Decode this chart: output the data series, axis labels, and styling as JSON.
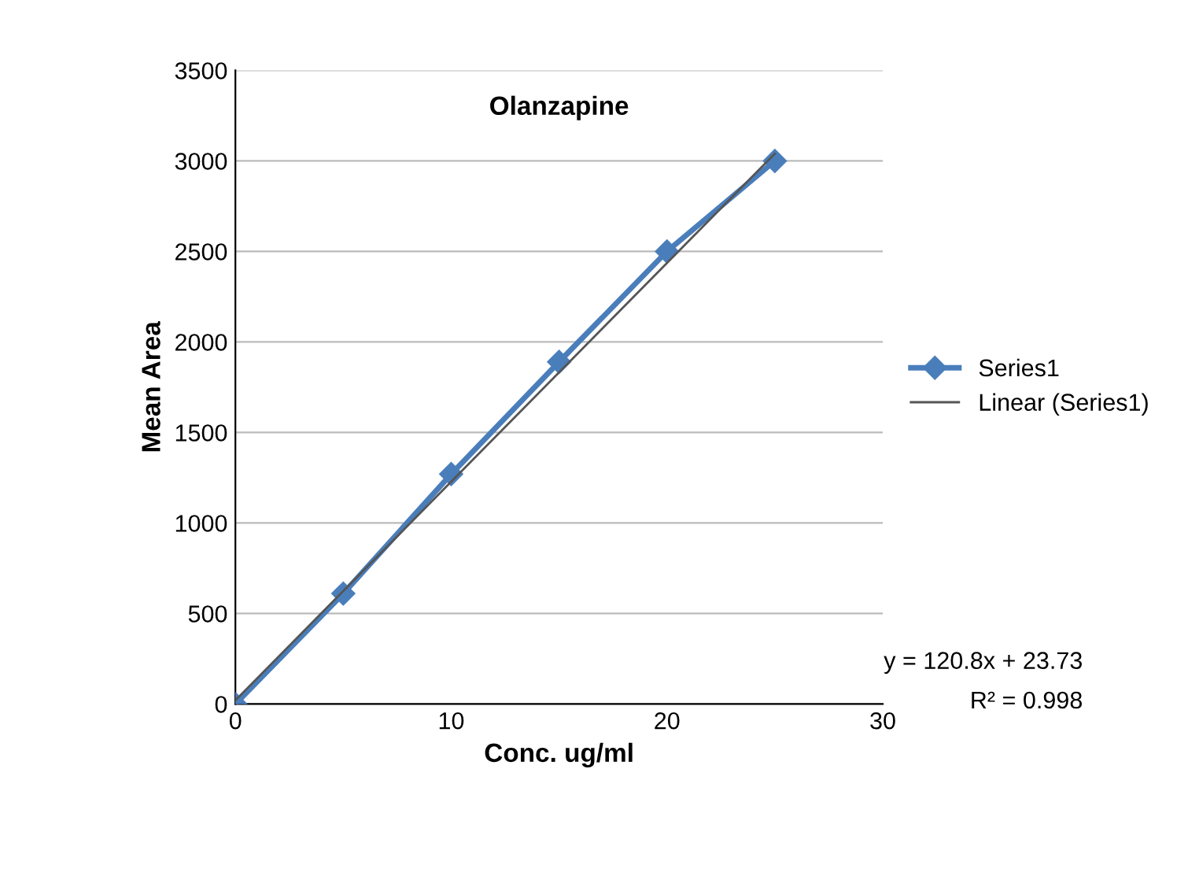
{
  "chart_data": {
    "type": "line",
    "title": "Olanzapine",
    "xlabel": "Conc. ug/ml",
    "ylabel": "Mean Area",
    "x": [
      0,
      5,
      10,
      15,
      20,
      25
    ],
    "series": [
      {
        "name": "Series1",
        "color": "#4a7ebb",
        "values": [
          0,
          610,
          1270,
          1890,
          2500,
          3000
        ],
        "marker": "diamond"
      },
      {
        "name": "Linear (Series1)",
        "color": "#555555",
        "type": "line",
        "x": [
          0,
          25
        ],
        "values": [
          20,
          3040
        ],
        "marker": "none"
      }
    ],
    "xlim": [
      0,
      30
    ],
    "xticks": [
      0,
      10,
      20,
      30
    ],
    "ylim": [
      0,
      3500
    ],
    "yticks": [
      0,
      500,
      1000,
      1500,
      2000,
      2500,
      3000,
      3500
    ],
    "grid": "y",
    "legend": "right",
    "annotations": [
      "y = 120.8x + 23.73",
      "R² = 0.998"
    ]
  }
}
